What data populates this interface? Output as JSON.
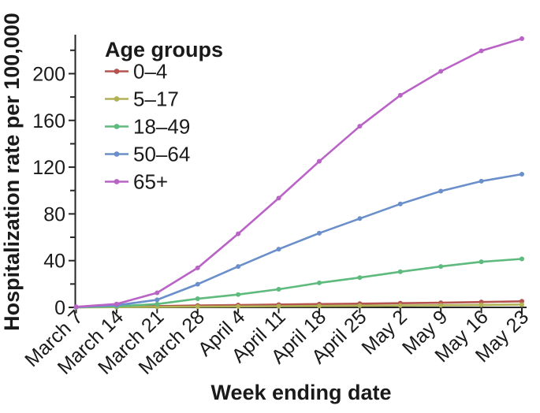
{
  "figure": {
    "background": "#ffffff",
    "text_color": "#1a1a1a",
    "axis_color": "#262626"
  },
  "chart_data": {
    "type": "line",
    "title": "",
    "xlabel": "Week ending date",
    "ylabel": "Hospitalization rate per 100,000",
    "categories": [
      "March 7",
      "March 14",
      "March 21",
      "March 28",
      "April 4",
      "April 11",
      "April 18",
      "April 25",
      "May 2",
      "May 9",
      "May 16",
      "May 23"
    ],
    "series": [
      {
        "name": "0-4",
        "label": "0–4",
        "color": "#b5534e",
        "values": [
          0.1,
          0.6,
          1.1,
          1.6,
          2.0,
          2.4,
          2.8,
          3.2,
          3.6,
          4.0,
          4.6,
          5.2
        ]
      },
      {
        "name": "5-17",
        "label": "5–17",
        "color": "#b1b156",
        "values": [
          0.0,
          0.2,
          0.4,
          0.6,
          0.8,
          1.0,
          1.2,
          1.4,
          1.6,
          1.8,
          2.1,
          2.4
        ]
      },
      {
        "name": "18-49",
        "label": "18–49",
        "color": "#5eba7d",
        "values": [
          0.2,
          0.9,
          2.8,
          7.4,
          11.0,
          15.5,
          21.0,
          25.5,
          30.5,
          35.0,
          39.0,
          41.5
        ]
      },
      {
        "name": "50-64",
        "label": "50–64",
        "color": "#6a8fca",
        "values": [
          0.3,
          1.8,
          6.5,
          19.8,
          35.0,
          49.8,
          63.5,
          76.0,
          88.5,
          99.5,
          108.0,
          114.0
        ]
      },
      {
        "name": "65+",
        "label": "65+",
        "color": "#ba63c6",
        "values": [
          0.5,
          2.9,
          12.5,
          33.8,
          63.0,
          93.5,
          125.0,
          155.0,
          181.5,
          202.0,
          219.5,
          230.0
        ]
      }
    ],
    "ylim": [
      0,
      232
    ],
    "yticks_major": [
      0,
      40,
      80,
      120,
      160,
      200
    ],
    "yticks_minor": [
      20,
      60,
      100,
      140,
      180,
      220
    ],
    "grid": false,
    "marker": "circle",
    "legend": {
      "title": "Age groups",
      "position": "top-left"
    }
  }
}
